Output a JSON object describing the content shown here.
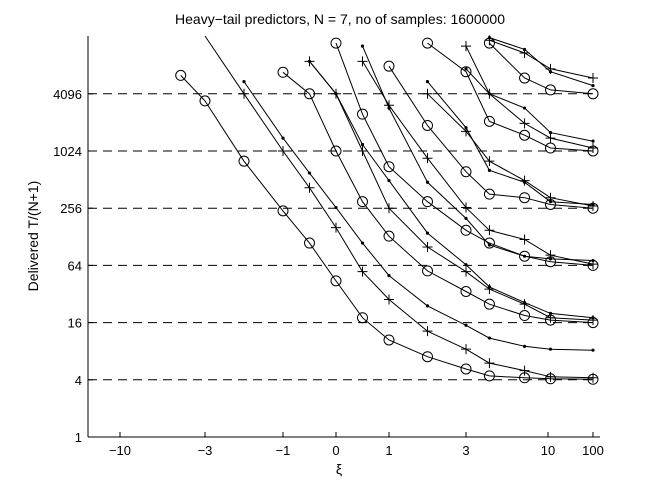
{
  "chart_data": {
    "type": "line",
    "title": "Heavy−tail predictors,  N = 7, no of samples: 1600000",
    "xlabel": "ξ",
    "ylabel": "Delivered T/(N+1)",
    "x_scale": "nonlinear (compressed near ±∞)",
    "y_scale": "log2",
    "ylim": [
      1,
      32768
    ],
    "x_ticks": [
      {
        "value": -10,
        "label": "−10"
      },
      {
        "value": -3,
        "label": "−3"
      },
      {
        "value": -1,
        "label": "−1"
      },
      {
        "value": 0,
        "label": "0"
      },
      {
        "value": 1,
        "label": "1"
      },
      {
        "value": 3,
        "label": "3"
      },
      {
        "value": 10,
        "label": "10"
      },
      {
        "value": 100,
        "label": "100"
      }
    ],
    "y_ticks": [
      {
        "value": 1,
        "label": "1"
      },
      {
        "value": 4,
        "label": "4"
      },
      {
        "value": 16,
        "label": "16"
      },
      {
        "value": 64,
        "label": "64"
      },
      {
        "value": 256,
        "label": "256"
      },
      {
        "value": 1024,
        "label": "1024"
      },
      {
        "value": 4096,
        "label": "4096"
      }
    ],
    "reference_lines": [
      4,
      16,
      64,
      256,
      1024,
      4096
    ],
    "grid": false,
    "legend": "none",
    "series": [
      {
        "marker": "circle",
        "points": [
          [
            -5,
            6400
          ],
          [
            -3,
            3450
          ],
          [
            -2,
            800
          ],
          [
            -1,
            240
          ],
          [
            -0.5,
            110
          ],
          [
            0,
            44
          ],
          [
            0.5,
            18
          ],
          [
            1,
            10.5
          ],
          [
            2,
            7
          ],
          [
            3,
            5.2
          ],
          [
            5,
            4.4
          ],
          [
            8,
            4.2
          ],
          [
            15,
            4.1
          ],
          [
            100,
            4.05
          ]
        ]
      },
      {
        "marker": "dot",
        "points": [
          [
            -2,
            5500
          ],
          [
            -1,
            1400
          ],
          [
            -0.5,
            600
          ],
          [
            0,
            260
          ],
          [
            0.5,
            110
          ],
          [
            1,
            50
          ],
          [
            2,
            24
          ],
          [
            3,
            15
          ],
          [
            5,
            11
          ],
          [
            8,
            9
          ],
          [
            15,
            8.4
          ],
          [
            100,
            8.2
          ]
        ]
      },
      {
        "marker": "plus",
        "points": [
          [
            -3,
            17000
          ],
          [
            -2,
            4096
          ],
          [
            -1,
            1024
          ],
          [
            -0.5,
            420
          ],
          [
            0,
            160
          ],
          [
            0.5,
            55
          ],
          [
            1,
            28
          ],
          [
            2,
            13
          ],
          [
            3,
            8.4
          ],
          [
            5,
            6
          ],
          [
            8,
            5
          ],
          [
            15,
            4.3
          ],
          [
            100,
            4.2
          ]
        ]
      },
      {
        "marker": "circle",
        "points": [
          [
            -1,
            6900
          ],
          [
            -0.5,
            4096
          ],
          [
            0,
            1024
          ],
          [
            0.5,
            300
          ],
          [
            1,
            130
          ],
          [
            2,
            56
          ],
          [
            3,
            34
          ],
          [
            5,
            25
          ],
          [
            8,
            19
          ],
          [
            15,
            17
          ],
          [
            100,
            16
          ]
        ]
      },
      {
        "marker": "dot",
        "points": [
          [
            -0.5,
            9000
          ],
          [
            0,
            4096
          ],
          [
            0.5,
            1200
          ],
          [
            1,
            500
          ],
          [
            2,
            140
          ],
          [
            3,
            65
          ],
          [
            5,
            38
          ],
          [
            8,
            26
          ],
          [
            15,
            20
          ],
          [
            100,
            18
          ]
        ]
      },
      {
        "marker": "plus",
        "points": [
          [
            -0.5,
            9000
          ],
          [
            0,
            4096
          ],
          [
            0.5,
            1024
          ],
          [
            1,
            256
          ],
          [
            2,
            100
          ],
          [
            3,
            55
          ],
          [
            5,
            36
          ],
          [
            8,
            25
          ],
          [
            15,
            18
          ],
          [
            100,
            17
          ]
        ]
      },
      {
        "marker": "circle",
        "points": [
          [
            0,
            14000
          ],
          [
            0.5,
            2500
          ],
          [
            1,
            700
          ],
          [
            2,
            300
          ],
          [
            3,
            150
          ],
          [
            5,
            110
          ],
          [
            8,
            80
          ],
          [
            15,
            70
          ],
          [
            100,
            64
          ]
        ]
      },
      {
        "marker": "dot",
        "points": [
          [
            0.5,
            13000
          ],
          [
            1,
            2900
          ],
          [
            2,
            480
          ],
          [
            3,
            200
          ],
          [
            5,
            105
          ],
          [
            8,
            80
          ],
          [
            15,
            75
          ],
          [
            100,
            72
          ]
        ]
      },
      {
        "marker": "plus",
        "points": [
          [
            0.5,
            9000
          ],
          [
            1,
            3100
          ],
          [
            2,
            860
          ],
          [
            3,
            260
          ],
          [
            5,
            150
          ],
          [
            8,
            120
          ],
          [
            15,
            82
          ],
          [
            100,
            66
          ]
        ]
      },
      {
        "marker": "circle",
        "points": [
          [
            1,
            8000
          ],
          [
            2,
            1900
          ],
          [
            3,
            620
          ],
          [
            5,
            360
          ],
          [
            8,
            330
          ],
          [
            15,
            280
          ],
          [
            100,
            256
          ]
        ]
      },
      {
        "marker": "dot",
        "points": [
          [
            2,
            5500
          ],
          [
            3,
            1800
          ],
          [
            5,
            640
          ],
          [
            8,
            480
          ],
          [
            15,
            300
          ],
          [
            100,
            280
          ]
        ]
      },
      {
        "marker": "plus",
        "points": [
          [
            2,
            4096
          ],
          [
            3,
            1650
          ],
          [
            5,
            800
          ],
          [
            8,
            500
          ],
          [
            15,
            330
          ],
          [
            100,
            270
          ]
        ]
      },
      {
        "marker": "circle",
        "points": [
          [
            2,
            14000
          ],
          [
            3,
            7000
          ],
          [
            5,
            2100
          ],
          [
            8,
            1500
          ],
          [
            15,
            1100
          ],
          [
            100,
            1024
          ]
        ]
      },
      {
        "marker": "dot",
        "points": [
          [
            3,
            7500
          ],
          [
            5,
            4096
          ],
          [
            8,
            2900
          ],
          [
            15,
            1600
          ],
          [
            100,
            1300
          ]
        ]
      },
      {
        "marker": "plus",
        "points": [
          [
            3,
            13000
          ],
          [
            5,
            4096
          ],
          [
            8,
            2000
          ],
          [
            15,
            1400
          ],
          [
            100,
            1100
          ]
        ]
      },
      {
        "marker": "circle",
        "points": [
          [
            5,
            14000
          ],
          [
            8,
            6000
          ],
          [
            15,
            4500
          ],
          [
            100,
            4096
          ]
        ]
      },
      {
        "marker": "dot",
        "points": [
          [
            5,
            16000
          ],
          [
            8,
            12000
          ],
          [
            15,
            7000
          ],
          [
            100,
            5000
          ]
        ]
      },
      {
        "marker": "plus",
        "points": [
          [
            5,
            15000
          ],
          [
            8,
            11000
          ],
          [
            15,
            7500
          ],
          [
            100,
            6000
          ]
        ]
      }
    ]
  }
}
